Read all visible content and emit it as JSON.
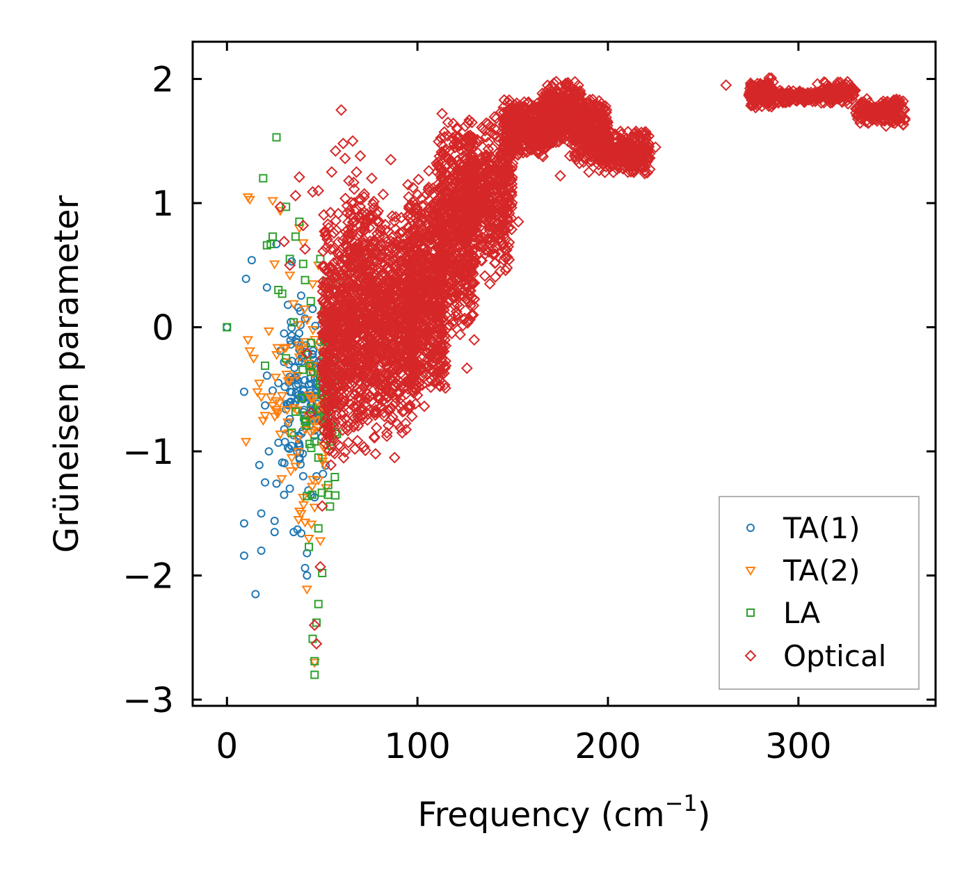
{
  "chart_data": {
    "type": "scatter",
    "title": "",
    "xlabel": "Frequency (cm",
    "xlabel_sup": "−1",
    "xlabel_close": ")",
    "ylabel": "Grüneisen parameter",
    "xlim": [
      -18,
      372
    ],
    "ylim": [
      -3.05,
      2.3
    ],
    "xticks": [
      0,
      100,
      200,
      300
    ],
    "xtick_labels": [
      "0",
      "100",
      "200",
      "300"
    ],
    "yticks": [
      -3,
      -2,
      -1,
      0,
      1,
      2
    ],
    "ytick_labels": [
      "−3",
      "−2",
      "−1",
      "0",
      "1",
      "2"
    ],
    "legend_position": "lower-right",
    "series": [
      {
        "name": "TA(1)",
        "marker": "circle",
        "color": "#1f77b4",
        "points": [
          [
            0,
            0
          ],
          [
            9,
            -0.52
          ],
          [
            10,
            0.39
          ],
          [
            13,
            0.54
          ],
          [
            9,
            -1.58
          ],
          [
            9,
            -1.84
          ],
          [
            15,
            -2.15
          ],
          [
            17,
            -1.11
          ],
          [
            18,
            -1.5
          ],
          [
            18,
            -1.8
          ],
          [
            20,
            -1.25
          ],
          [
            20,
            -0.63
          ],
          [
            21,
            -0.39
          ],
          [
            21,
            0.32
          ],
          [
            22,
            -1.0
          ],
          [
            24,
            -0.51
          ],
          [
            25,
            -1.56
          ],
          [
            25,
            -1.65
          ],
          [
            26,
            0.67
          ],
          [
            26,
            -1.26
          ],
          [
            27,
            -0.93
          ],
          [
            27,
            -0.45
          ],
          [
            28,
            -0.19
          ],
          [
            29,
            -1.09
          ],
          [
            30,
            -0.28
          ],
          [
            30,
            -1.35
          ],
          [
            31,
            -0.66
          ],
          [
            32,
            0.18
          ],
          [
            33,
            -0.74
          ],
          [
            33,
            -1.3
          ],
          [
            34,
            0.53
          ],
          [
            34,
            -0.07
          ],
          [
            35,
            -1.65
          ],
          [
            35,
            -0.87
          ],
          [
            36,
            -0.4
          ],
          [
            37,
            -1.63
          ],
          [
            38,
            -0.18
          ],
          [
            38,
            -0.95
          ],
          [
            39,
            -1.66
          ],
          [
            40,
            -0.58
          ],
          [
            40,
            -1.2
          ],
          [
            41,
            0.07
          ],
          [
            41,
            -1.94
          ],
          [
            42,
            -2.0
          ],
          [
            42,
            -1.82
          ],
          [
            43,
            -0.31
          ],
          [
            43,
            -0.46
          ],
          [
            44,
            -1.35
          ],
          [
            44,
            -0.75
          ],
          [
            45,
            -0.22
          ],
          [
            45,
            -0.62
          ],
          [
            46,
            -1.37
          ],
          [
            46,
            -0.55
          ],
          [
            47,
            -0.32
          ],
          [
            47,
            -0.68
          ],
          [
            48,
            -0.48
          ],
          [
            48,
            -0.28
          ],
          [
            49,
            -0.12
          ],
          [
            49,
            -0.38
          ],
          [
            50,
            -0.52
          ],
          [
            50,
            -0.2
          ],
          [
            36,
            -0.6
          ],
          [
            38,
            -1.05
          ],
          [
            30,
            -0.05
          ],
          [
            32,
            -0.97
          ]
        ]
      },
      {
        "name": "TA(2)",
        "marker": "triangle-down",
        "color": "#ff7f0e",
        "points": [
          [
            11,
            1.05
          ],
          [
            12,
            1.03
          ],
          [
            10,
            -0.92
          ],
          [
            11,
            -0.1
          ],
          [
            12,
            -0.19
          ],
          [
            14,
            -0.25
          ],
          [
            16,
            -0.52
          ],
          [
            17,
            -0.45
          ],
          [
            18,
            -0.56
          ],
          [
            19,
            -0.75
          ],
          [
            20,
            -0.71
          ],
          [
            22,
            -0.03
          ],
          [
            23,
            -0.56
          ],
          [
            24,
            1.02
          ],
          [
            24,
            -0.63
          ],
          [
            25,
            0.51
          ],
          [
            26,
            -0.68
          ],
          [
            28,
            0.94
          ],
          [
            28,
            -0.86
          ],
          [
            29,
            -0.55
          ],
          [
            30,
            -0.17
          ],
          [
            31,
            -0.28
          ],
          [
            32,
            -0.43
          ],
          [
            33,
            0.42
          ],
          [
            34,
            -1.05
          ],
          [
            35,
            0.19
          ],
          [
            36,
            -1.12
          ],
          [
            37,
            -0.9
          ],
          [
            38,
            -0.24
          ],
          [
            38,
            0.8
          ],
          [
            39,
            -1.5
          ],
          [
            40,
            -1.37
          ],
          [
            40,
            0.68
          ],
          [
            41,
            -1.57
          ],
          [
            42,
            0.06
          ],
          [
            42,
            -2.11
          ],
          [
            43,
            -1.7
          ],
          [
            44,
            -0.57
          ],
          [
            45,
            -0.31
          ],
          [
            45,
            0.35
          ],
          [
            46,
            -1.45
          ],
          [
            46,
            -2.7
          ],
          [
            47,
            -0.75
          ],
          [
            48,
            0.5
          ],
          [
            48,
            -1.23
          ],
          [
            49,
            -1.72
          ],
          [
            50,
            -0.95
          ],
          [
            51,
            -0.58
          ],
          [
            52,
            0.3
          ],
          [
            53,
            -0.8
          ]
        ]
      },
      {
        "name": "LA",
        "marker": "square",
        "color": "#2ca02c",
        "points": [
          [
            0,
            0
          ],
          [
            19,
            1.2
          ],
          [
            20,
            -0.31
          ],
          [
            21,
            0.66
          ],
          [
            23,
            0.67
          ],
          [
            24,
            0.73
          ],
          [
            26,
            1.53
          ],
          [
            27,
            0.3
          ],
          [
            29,
            0.27
          ],
          [
            31,
            0.97
          ],
          [
            31,
            -0.25
          ],
          [
            33,
            0.55
          ],
          [
            34,
            -0.85
          ],
          [
            35,
            0.04
          ],
          [
            36,
            0.73
          ],
          [
            36,
            -0.68
          ],
          [
            38,
            0.85
          ],
          [
            39,
            -0.57
          ],
          [
            40,
            0.51
          ],
          [
            41,
            0.38
          ],
          [
            42,
            -1.36
          ],
          [
            43,
            -1.77
          ],
          [
            44,
            0.21
          ],
          [
            45,
            -2.51
          ],
          [
            46,
            -2.8
          ],
          [
            46,
            -2.69
          ],
          [
            47,
            -2.38
          ],
          [
            48,
            -2.23
          ],
          [
            48,
            -1.62
          ],
          [
            49,
            0.55
          ],
          [
            50,
            -1.98
          ],
          [
            51,
            0.13
          ],
          [
            52,
            0.37
          ],
          [
            53,
            -1.35
          ],
          [
            54,
            0.27
          ],
          [
            55,
            -0.01
          ],
          [
            56,
            -0.24
          ],
          [
            57,
            0.36
          ],
          [
            58,
            -0.47
          ],
          [
            59,
            -0.07
          ],
          [
            60,
            0.22
          ],
          [
            44,
            -0.36
          ],
          [
            46,
            -0.92
          ],
          [
            52,
            -0.73
          ],
          [
            48,
            -1.05
          ]
        ]
      },
      {
        "name": "Optical",
        "marker": "diamond",
        "color": "#d62728",
        "points": [
          [
            28,
            0.97
          ],
          [
            30,
            0.69
          ],
          [
            33,
            0.5
          ],
          [
            36,
            1.06
          ],
          [
            38,
            1.21
          ],
          [
            40,
            0.82
          ],
          [
            41,
            0.63
          ],
          [
            42,
            -0.21
          ],
          [
            44,
            -0.69
          ],
          [
            45,
            1.09
          ],
          [
            46,
            -2.4
          ],
          [
            47,
            -2.55
          ],
          [
            48,
            1.1
          ],
          [
            49,
            -1.93
          ],
          [
            50,
            -1.44
          ],
          [
            52,
            -0.34
          ],
          [
            53,
            0.83
          ],
          [
            55,
            1.25
          ],
          [
            57,
            1.42
          ],
          [
            59,
            -0.56
          ],
          [
            60,
            1.75
          ],
          [
            61,
            1.48
          ],
          [
            62,
            1.36
          ],
          [
            64,
            1.18
          ],
          [
            65,
            -0.62
          ],
          [
            66,
            1.5
          ],
          [
            68,
            1.25
          ],
          [
            70,
            1.38
          ],
          [
            72,
            1.05
          ],
          [
            74,
            -0.7
          ],
          [
            76,
            1.2
          ],
          [
            78,
            -1.02
          ],
          [
            80,
            0.85
          ],
          [
            82,
            1.07
          ],
          [
            84,
            -0.85
          ],
          [
            86,
            1.35
          ],
          [
            88,
            -1.05
          ],
          [
            90,
            0.58
          ],
          [
            92,
            -0.85
          ],
          [
            95,
            0.35
          ],
          [
            98,
            -0.35
          ],
          [
            100,
            0.62
          ],
          [
            103,
            0.25
          ],
          [
            106,
            1.26
          ],
          [
            110,
            1.32
          ],
          [
            112,
            -0.15
          ],
          [
            115,
            1.37
          ],
          [
            118,
            -0.05
          ],
          [
            122,
            1.46
          ],
          [
            126,
            -0.33
          ],
          [
            130,
            1.35
          ],
          [
            133,
            0.95
          ],
          [
            138,
            0.35
          ],
          [
            140,
            0.68
          ],
          [
            145,
            1.43
          ],
          [
            150,
            1.32
          ],
          [
            153,
            0.85
          ],
          [
            160,
            1.43
          ],
          [
            170,
            1.48
          ],
          [
            175,
            1.22
          ],
          [
            180,
            1.38
          ],
          [
            185,
            1.32
          ],
          [
            190,
            1.25
          ],
          [
            195,
            1.39
          ],
          [
            205,
            1.5
          ],
          [
            210,
            1.48
          ],
          [
            215,
            1.55
          ],
          [
            220,
            1.43
          ],
          [
            225,
            1.45
          ],
          [
            262,
            1.95
          ],
          [
            275,
            1.95
          ],
          [
            285,
            1.85
          ],
          [
            295,
            1.82
          ],
          [
            310,
            1.96
          ],
          [
            318,
            1.83
          ],
          [
            326,
            1.8
          ],
          [
            338,
            1.68
          ],
          [
            346,
            1.62
          ],
          [
            355,
            1.63
          ]
        ]
      }
    ],
    "clusters": [
      {
        "series": "Optical",
        "x": [
          50,
          62
        ],
        "y": [
          -1.15,
          0.95
        ],
        "n": 380,
        "density": 0.75
      },
      {
        "series": "Optical",
        "x": [
          62,
          80
        ],
        "y": [
          -1.0,
          1.2
        ],
        "n": 650,
        "density": 0.9
      },
      {
        "series": "Optical",
        "x": [
          80,
          100
        ],
        "y": [
          -0.9,
          1.0
        ],
        "n": 600,
        "density": 0.9
      },
      {
        "series": "Optical",
        "x": [
          95,
          115
        ],
        "y": [
          -0.65,
          1.25
        ],
        "n": 600,
        "density": 0.9
      },
      {
        "series": "Optical",
        "x": [
          110,
          130
        ],
        "y": [
          -0.15,
          1.75
        ],
        "n": 550,
        "density": 0.9
      },
      {
        "series": "Optical",
        "x": [
          125,
          150
        ],
        "y": [
          0.4,
          1.75
        ],
        "n": 500,
        "density": 0.85
      },
      {
        "series": "Optical",
        "x": [
          145,
          168
        ],
        "y": [
          1.35,
          1.85
        ],
        "n": 380,
        "density": 0.9
      },
      {
        "series": "Optical",
        "x": [
          165,
          186
        ],
        "y": [
          1.45,
          2.0
        ],
        "n": 350,
        "density": 0.9
      },
      {
        "series": "Optical",
        "x": [
          182,
          200
        ],
        "y": [
          1.3,
          1.9
        ],
        "n": 280,
        "density": 0.9
      },
      {
        "series": "Optical",
        "x": [
          195,
          222
        ],
        "y": [
          1.2,
          1.6
        ],
        "n": 300,
        "density": 0.9
      },
      {
        "series": "Optical",
        "x": [
          274,
          287
        ],
        "y": [
          1.76,
          2.02
        ],
        "n": 160,
        "density": 0.95
      },
      {
        "series": "Optical",
        "x": [
          288,
          312
        ],
        "y": [
          1.8,
          1.92
        ],
        "n": 160,
        "density": 0.95
      },
      {
        "series": "Optical",
        "x": [
          313,
          330
        ],
        "y": [
          1.8,
          1.99
        ],
        "n": 140,
        "density": 0.95
      },
      {
        "series": "Optical",
        "x": [
          330,
          356
        ],
        "y": [
          1.62,
          1.85
        ],
        "n": 180,
        "density": 0.95
      },
      {
        "series": "TA(1)",
        "x": [
          30,
          52
        ],
        "y": [
          -1.4,
          0.3
        ],
        "n": 110,
        "density": 0.5
      },
      {
        "series": "TA(2)",
        "x": [
          25,
          53
        ],
        "y": [
          -1.7,
          0.4
        ],
        "n": 60,
        "density": 0.35
      },
      {
        "series": "LA",
        "x": [
          38,
          58
        ],
        "y": [
          -1.7,
          0.55
        ],
        "n": 50,
        "density": 0.35
      }
    ]
  }
}
